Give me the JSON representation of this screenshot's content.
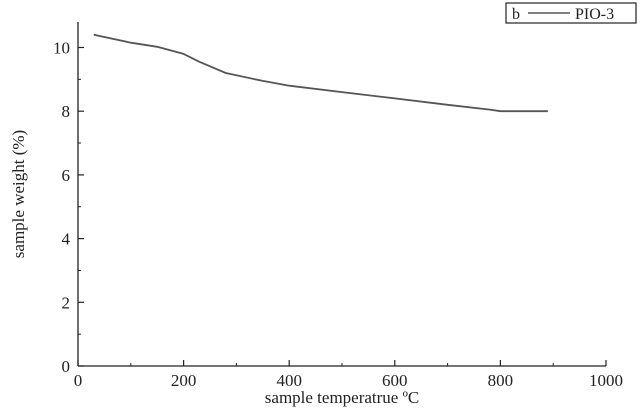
{
  "chart_data": {
    "type": "line",
    "xlabel": "sample temperatrue ºC",
    "ylabel": "sample weight (%)",
    "xlim": [
      0,
      1000
    ],
    "ylim": [
      0,
      10.8
    ],
    "xticks": [
      0,
      200,
      400,
      600,
      800,
      1000
    ],
    "yticks": [
      0,
      2,
      4,
      6,
      8,
      10
    ],
    "xtick_labels": [
      "0",
      "200",
      "400",
      "600",
      "800",
      "1000"
    ],
    "ytick_labels": [
      "0",
      "2",
      "4",
      "6",
      "8",
      "10"
    ],
    "grid": false,
    "legend": {
      "position": "top-right",
      "panel_letter": "b"
    },
    "colors": {
      "line": "#555555",
      "axis": "#222222"
    },
    "series": [
      {
        "name": "PIO-3",
        "x": [
          30,
          100,
          150,
          200,
          230,
          280,
          350,
          400,
          500,
          600,
          700,
          780,
          800,
          850,
          890
        ],
        "y": [
          10.4,
          10.15,
          10.02,
          9.8,
          9.55,
          9.2,
          8.95,
          8.8,
          8.6,
          8.4,
          8.2,
          8.05,
          8.0,
          8.0,
          8.0
        ]
      }
    ]
  }
}
